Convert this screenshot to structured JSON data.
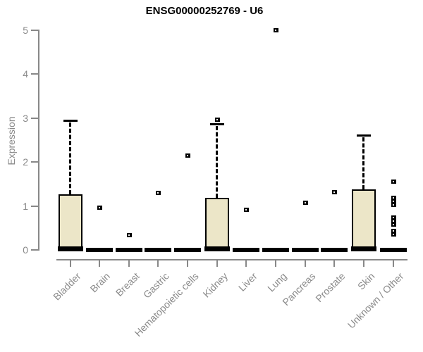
{
  "chart_data": {
    "type": "boxplot",
    "title": "ENSG00000252769 - U6",
    "ylabel": "Expression",
    "xlabel": "",
    "ylim": [
      0,
      5
    ],
    "yticks": [
      0,
      1,
      2,
      3,
      4,
      5
    ],
    "grid": false,
    "legend": false,
    "categories": [
      "Bladder",
      "Brain",
      "Breast",
      "Gastric",
      "Hematopoietic cells",
      "Kidney",
      "Liver",
      "Lung",
      "Pancreas",
      "Prostate",
      "Skin",
      "Unknown / Other"
    ],
    "series": [
      {
        "name": "Bladder",
        "has_box": true,
        "q1": 0.03,
        "median": 0.02,
        "q3": 1.27,
        "whisker_low": 0,
        "whisker_high": 2.95,
        "outliers": []
      },
      {
        "name": "Brain",
        "has_box": false,
        "q1": 0,
        "median": 0.02,
        "q3": 0.03,
        "whisker_low": 0,
        "whisker_high": 0.03,
        "outliers": [
          0.96
        ]
      },
      {
        "name": "Breast",
        "has_box": false,
        "q1": 0,
        "median": 0.02,
        "q3": 0.03,
        "whisker_low": 0,
        "whisker_high": 0.03,
        "outliers": [
          0.34
        ]
      },
      {
        "name": "Gastric",
        "has_box": false,
        "q1": 0,
        "median": 0.02,
        "q3": 0.03,
        "whisker_low": 0,
        "whisker_high": 0.03,
        "outliers": [
          1.3
        ]
      },
      {
        "name": "Hematopoietic cells",
        "has_box": false,
        "q1": 0,
        "median": 0.02,
        "q3": 0.03,
        "whisker_low": 0,
        "whisker_high": 0.03,
        "outliers": [
          2.14
        ]
      },
      {
        "name": "Kidney",
        "has_box": true,
        "q1": 0.03,
        "median": 0.02,
        "q3": 1.19,
        "whisker_low": 0,
        "whisker_high": 2.87,
        "outliers": [
          2.96
        ]
      },
      {
        "name": "Liver",
        "has_box": false,
        "q1": 0,
        "median": 0.02,
        "q3": 0.03,
        "whisker_low": 0,
        "whisker_high": 0.03,
        "outliers": [
          0.92
        ]
      },
      {
        "name": "Lung",
        "has_box": false,
        "q1": 0,
        "median": 0.02,
        "q3": 0.03,
        "whisker_low": 0,
        "whisker_high": 0.03,
        "outliers": [
          5.0
        ]
      },
      {
        "name": "Pancreas",
        "has_box": false,
        "q1": 0,
        "median": 0.02,
        "q3": 0.03,
        "whisker_low": 0,
        "whisker_high": 0.03,
        "outliers": [
          1.07
        ]
      },
      {
        "name": "Prostate",
        "has_box": false,
        "q1": 0,
        "median": 0.02,
        "q3": 0.03,
        "whisker_low": 0,
        "whisker_high": 0.03,
        "outliers": [
          1.31
        ]
      },
      {
        "name": "Skin",
        "has_box": true,
        "q1": 0.03,
        "median": 0.02,
        "q3": 1.38,
        "whisker_low": 0,
        "whisker_high": 2.62,
        "outliers": []
      },
      {
        "name": "Unknown / Other",
        "has_box": false,
        "q1": 0,
        "median": 0.02,
        "q3": 0.03,
        "whisker_low": 0,
        "whisker_high": 0.03,
        "outliers": [
          1.55,
          1.18,
          1.1,
          1.03,
          0.73,
          0.65,
          0.57,
          0.44,
          0.35
        ]
      }
    ],
    "colors": {
      "box_fill": "#ece6c8",
      "box_border": "#000000",
      "median": "#000000",
      "whisker": "#000000",
      "outlier": "#000000",
      "outlier_center": "#ffffff",
      "axis": "#888888",
      "tick_label": "#8a8a8a",
      "title": "#000000",
      "background": "#ffffff"
    }
  }
}
